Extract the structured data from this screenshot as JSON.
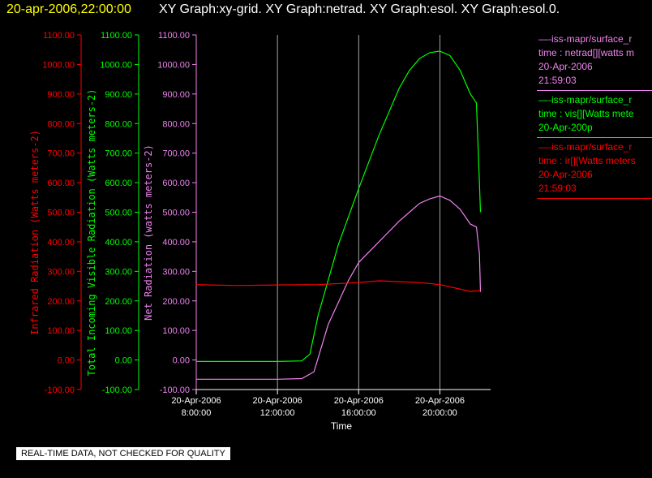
{
  "header": {
    "date_time": "20-apr-2006,22:00:00",
    "graphs": "XY Graph:xy-grid.  XY Graph:netrad.  XY Graph:esol.  XY Graph:esol.0."
  },
  "notice": "REAL-TIME DATA, NOT CHECKED FOR QUALITY",
  "legend": [
    {
      "lines": [
        "—-iss-mapr/surface_r",
        "time : netrad[][watts m",
        "20-Apr-2006",
        "21:59:03"
      ],
      "color": "#ee82ee"
    },
    {
      "lines": [
        "—-iss-mapr/surface_r",
        "time : vis[][Watts mete",
        "20-Apr-200p"
      ],
      "color": "#00ff00"
    },
    {
      "lines": [
        "—-iss-mapr/surface_r",
        "time : ir[][Watts meters",
        "20-Apr-2006",
        "21:59:03"
      ],
      "color": "#ff0000"
    }
  ],
  "chart_data": {
    "type": "line",
    "xlabel": "Time",
    "x_ticks": [
      {
        "date": "20-Apr-2006",
        "time": "8:00:00",
        "hour": 8
      },
      {
        "date": "20-Apr-2006",
        "time": "12:00:00",
        "hour": 12
      },
      {
        "date": "20-Apr-2006",
        "time": "16:00:00",
        "hour": 16
      },
      {
        "date": "20-Apr-2006",
        "time": "20:00:00",
        "hour": 20
      }
    ],
    "xlim_hours": [
      8,
      22.5
    ],
    "ylim": [
      -100,
      1100
    ],
    "y_tick_values": [
      -100,
      0,
      100,
      200,
      300,
      400,
      500,
      600,
      700,
      800,
      900,
      1000,
      1100
    ],
    "y_tick_labels": [
      "-100.00",
      "0.00",
      "100.00",
      "200.00",
      "300.00",
      "400.00",
      "500.00",
      "600.00",
      "700.00",
      "800.00",
      "900.00",
      "1000.00",
      "1100.00"
    ],
    "y_axes": [
      {
        "label": "Infrared Radiation (Watts meters-2)",
        "color": "#ff0000"
      },
      {
        "label": "Total Incoming Visible Radiation (Watts meters-2)",
        "color": "#00ff00"
      },
      {
        "label": "Net Radiation (watts meters-2)",
        "color": "#ee82ee"
      }
    ],
    "grid": "vertical",
    "series": [
      {
        "color": "#00ff00",
        "x": [
          8,
          10,
          12,
          13.2,
          13.6,
          14,
          15,
          16,
          17,
          18,
          18.5,
          19,
          19.5,
          20,
          20.5,
          21,
          21.5,
          21.8,
          21.95,
          22
        ],
        "y": [
          -5,
          -5,
          -5,
          -3,
          20,
          150,
          390,
          580,
          760,
          920,
          980,
          1020,
          1040,
          1045,
          1030,
          980,
          900,
          870,
          600,
          500
        ]
      },
      {
        "color": "#ee82ee",
        "x": [
          8,
          10,
          12,
          13.2,
          13.8,
          14.5,
          15.5,
          16,
          17,
          18,
          18.5,
          19,
          19.5,
          20,
          20.5,
          21,
          21.5,
          21.8,
          21.95,
          22
        ],
        "y": [
          -65,
          -65,
          -65,
          -63,
          -40,
          120,
          270,
          330,
          400,
          470,
          500,
          530,
          545,
          555,
          540,
          510,
          460,
          450,
          360,
          230
        ]
      },
      {
        "color": "#ff0000",
        "x": [
          8,
          10,
          12,
          14,
          16,
          17,
          18,
          19,
          20,
          21,
          21.5,
          22
        ],
        "y": [
          255,
          252,
          254,
          255,
          262,
          268,
          265,
          262,
          255,
          240,
          232,
          235
        ]
      }
    ]
  }
}
